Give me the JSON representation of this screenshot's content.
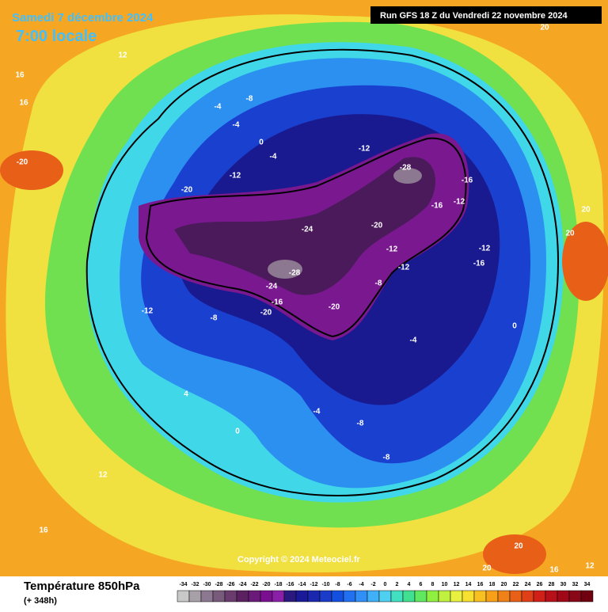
{
  "header": {
    "date": "Samedi 7 décembre 2024",
    "time": "7:00 locale",
    "run": "Run GFS 18 Z du Vendredi 22 novembre 2024"
  },
  "copyright": "Copyright © 2024 Meteociel.fr",
  "footer": {
    "title": "Température 850hPa",
    "lead": "(+ 348h)"
  },
  "scale": {
    "ticks": [
      -34,
      -32,
      -30,
      -28,
      -26,
      -24,
      -22,
      -20,
      -18,
      -16,
      -14,
      -12,
      -10,
      -8,
      -6,
      -4,
      -2,
      0,
      2,
      4,
      6,
      8,
      10,
      12,
      14,
      16,
      18,
      20,
      22,
      24,
      26,
      28,
      30,
      32,
      34
    ],
    "colors": [
      "#c8c8c8",
      "#a8a0a8",
      "#8c7890",
      "#785a7a",
      "#6a3c6e",
      "#5a2060",
      "#6a1a78",
      "#7a1090",
      "#8a20a8",
      "#2a1a80",
      "#1a1a98",
      "#1a28b0",
      "#1a3cc8",
      "#1450e0",
      "#2070f0",
      "#3090f8",
      "#40b0f8",
      "#50d0f0",
      "#40e0c0",
      "#40e090",
      "#60e860",
      "#90f040",
      "#c0f040",
      "#e8f040",
      "#f8e030",
      "#f8c020",
      "#f8a018",
      "#f08018",
      "#e86018",
      "#e04018",
      "#d02018",
      "#b81018",
      "#a00818",
      "#880818",
      "#700010"
    ]
  },
  "map": {
    "labels": [
      "12",
      "16",
      "16",
      "-20",
      "20",
      "-4",
      "-8",
      "-4",
      "0",
      "-4",
      "-12",
      "-12",
      "-28",
      "-16",
      "-16",
      "-12",
      "-20",
      "-24",
      "-20",
      "-28",
      "-24",
      "-16",
      "-20",
      "-12",
      "-12",
      "-8",
      "-12",
      "-16",
      "-4",
      "0",
      "-8",
      "-8",
      "-4",
      "4",
      "0",
      "12",
      "16",
      "20",
      "20",
      "20",
      "20",
      "16",
      "12",
      "-12",
      "-8",
      "-20"
    ]
  }
}
